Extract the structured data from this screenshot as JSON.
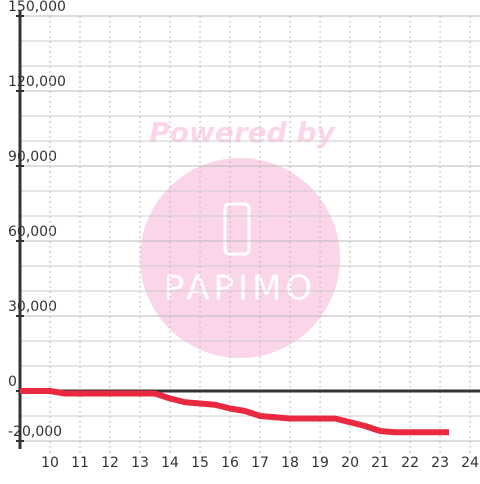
{
  "chart_data": {
    "type": "line",
    "x": [
      9,
      10,
      10.5,
      11,
      12,
      13,
      13.5,
      14,
      14.5,
      15,
      15.5,
      16,
      16.5,
      17,
      17.5,
      18,
      19,
      19.5,
      20,
      20.5,
      21,
      21.5,
      22,
      23,
      23.3
    ],
    "series": [
      {
        "color": "#e8293f",
        "values": [
          0,
          0,
          -1000,
          -1000,
          -1000,
          -1000,
          -1000,
          -3000,
          -4500,
          -5000,
          -5500,
          -7000,
          -8000,
          -10000,
          -10500,
          -11000,
          -11000,
          -11000,
          -12500,
          -14000,
          -16000,
          -16500,
          -16500,
          -16500,
          -16500
        ]
      }
    ],
    "xlim": [
      9,
      24.33
    ],
    "ylim": [
      -20000,
      150000
    ],
    "xticks": [
      10,
      11,
      12,
      13,
      14,
      15,
      16,
      17,
      18,
      19,
      20,
      21,
      22,
      23,
      24
    ],
    "yticks": [
      {
        "value": 150000,
        "label": "150,000"
      },
      {
        "value": 120000,
        "label": "120,000"
      },
      {
        "value": 90000,
        "label": "90,000"
      },
      {
        "value": 60000,
        "label": "60,000"
      },
      {
        "value": 30000,
        "label": "30,000"
      },
      0,
      {
        "value": -20000,
        "label": "-20,000"
      }
    ],
    "minor_yticks": [
      140000,
      130000,
      110000,
      100000,
      80000,
      70000,
      50000,
      40000,
      20000,
      10000,
      -10000
    ],
    "grid": true,
    "watermark": {
      "line1": "Powered by",
      "line2": "PAPIMO"
    }
  }
}
